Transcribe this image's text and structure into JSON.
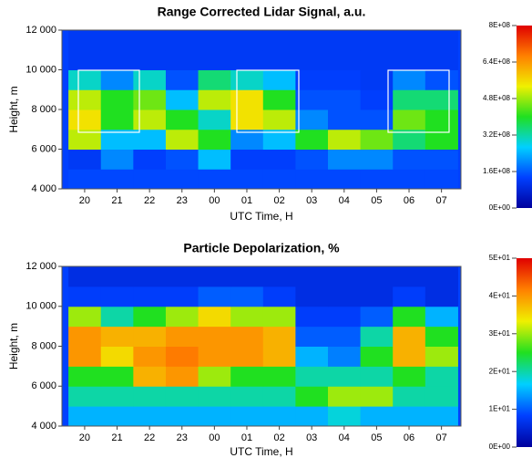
{
  "chart_data": [
    {
      "type": "heatmap",
      "title": "Range Corrected Lidar Signal, a.u.",
      "xlabel": "UTC Time, H",
      "ylabel": "Height, m",
      "x": [
        20,
        21,
        22,
        23,
        24,
        25,
        26,
        27,
        28,
        29,
        30,
        31
      ],
      "y": [
        4500,
        5500,
        6500,
        7500,
        8500,
        9500,
        10500,
        11500
      ],
      "z": [
        [
          140000000,
          140000000,
          140000000,
          140000000,
          140000000,
          140000000,
          140000000,
          140000000,
          140000000,
          140000000,
          140000000,
          140000000
        ],
        [
          120000000,
          200000000,
          130000000,
          150000000,
          250000000,
          130000000,
          130000000,
          150000000,
          200000000,
          200000000,
          150000000,
          150000000
        ],
        [
          500000000,
          250000000,
          250000000,
          500000000,
          400000000,
          200000000,
          250000000,
          400000000,
          500000000,
          450000000,
          350000000,
          400000000
        ],
        [
          550000000,
          400000000,
          500000000,
          400000000,
          300000000,
          550000000,
          500000000,
          200000000,
          150000000,
          150000000,
          450000000,
          400000000
        ],
        [
          500000000,
          400000000,
          450000000,
          250000000,
          500000000,
          550000000,
          400000000,
          150000000,
          150000000,
          130000000,
          350000000,
          350000000
        ],
        [
          300000000,
          200000000,
          300000000,
          150000000,
          350000000,
          300000000,
          250000000,
          130000000,
          130000000,
          120000000,
          200000000,
          150000000
        ],
        [
          120000000,
          120000000,
          120000000,
          120000000,
          120000000,
          120000000,
          120000000,
          120000000,
          120000000,
          120000000,
          120000000,
          120000000
        ],
        [
          120000000,
          120000000,
          120000000,
          120000000,
          120000000,
          120000000,
          120000000,
          120000000,
          120000000,
          120000000,
          120000000,
          120000000
        ]
      ],
      "xlim": [
        19.3,
        31.6
      ],
      "xticks": [
        20,
        21,
        22,
        23,
        {
          "value": 24,
          "label": "00"
        },
        {
          "value": 25,
          "label": "01"
        },
        {
          "value": 26,
          "label": "02"
        },
        {
          "value": 27,
          "label": "03"
        },
        {
          "value": 28,
          "label": "04"
        },
        {
          "value": 29,
          "label": "05"
        },
        {
          "value": 30,
          "label": "06"
        },
        {
          "value": 31,
          "label": "07"
        }
      ],
      "ylim": [
        4000,
        12000
      ],
      "yticks": [
        {
          "value": 4000,
          "label": "4 000"
        },
        {
          "value": 6000,
          "label": "6 000"
        },
        {
          "value": 8000,
          "label": "8 000"
        },
        {
          "value": 10000,
          "label": "10 000"
        },
        {
          "value": 12000,
          "label": "12 000"
        }
      ],
      "zlim": [
        0,
        800000000
      ],
      "zticks": [
        {
          "value": 0,
          "label": "0E+00"
        },
        {
          "value": 160000000,
          "label": "1.6E+08"
        },
        {
          "value": 320000000,
          "label": "3.2E+08"
        },
        {
          "value": 480000000,
          "label": "4.8E+08"
        },
        {
          "value": 640000000,
          "label": "6.4E+08"
        },
        {
          "value": 800000000,
          "label": "8E+08"
        }
      ],
      "colorscale": [
        "#00009c",
        "#0040ff",
        "#00d0ff",
        "#20e020",
        "#f0f000",
        "#ff8000",
        "#e00000"
      ]
    },
    {
      "type": "heatmap",
      "title": "Particle Depolarization, %",
      "xlabel": "UTC Time, H",
      "ylabel": "Height, m",
      "x": [
        20,
        21,
        22,
        23,
        24,
        25,
        26,
        27,
        28,
        29,
        30,
        31
      ],
      "y": [
        4500,
        5500,
        6500,
        7500,
        8500,
        9500,
        10500,
        11500
      ],
      "z": [
        [
          15,
          15,
          15,
          15,
          15,
          15,
          15,
          15,
          18,
          15,
          15,
          15
        ],
        [
          20,
          20,
          20,
          20,
          20,
          20,
          20,
          25,
          30,
          30,
          20,
          20
        ],
        [
          25,
          25,
          38,
          40,
          30,
          25,
          25,
          20,
          20,
          20,
          25,
          20
        ],
        [
          40,
          35,
          40,
          42,
          40,
          40,
          38,
          15,
          12,
          25,
          38,
          30
        ],
        [
          40,
          38,
          38,
          40,
          40,
          40,
          38,
          10,
          10,
          20,
          38,
          25
        ],
        [
          30,
          20,
          25,
          30,
          35,
          30,
          30,
          8,
          8,
          10,
          25,
          15
        ],
        [
          8,
          8,
          8,
          8,
          10,
          10,
          8,
          6,
          6,
          6,
          8,
          6
        ],
        [
          6,
          6,
          6,
          6,
          6,
          6,
          6,
          6,
          6,
          6,
          6,
          6
        ]
      ],
      "xlim": [
        19.3,
        31.6
      ],
      "xticks": [
        20,
        21,
        22,
        23,
        {
          "value": 24,
          "label": "00"
        },
        {
          "value": 25,
          "label": "01"
        },
        {
          "value": 26,
          "label": "02"
        },
        {
          "value": 27,
          "label": "03"
        },
        {
          "value": 28,
          "label": "04"
        },
        {
          "value": 29,
          "label": "05"
        },
        {
          "value": 30,
          "label": "06"
        },
        {
          "value": 31,
          "label": "07"
        }
      ],
      "ylim": [
        4000,
        12000
      ],
      "yticks": [
        {
          "value": 4000,
          "label": "4 000"
        },
        {
          "value": 6000,
          "label": "6 000"
        },
        {
          "value": 8000,
          "label": "8 000"
        },
        {
          "value": 10000,
          "label": "10 000"
        },
        {
          "value": 12000,
          "label": "12 000"
        }
      ],
      "zlim": [
        0,
        50
      ],
      "zticks": [
        {
          "value": 0,
          "label": "0E+00"
        },
        {
          "value": 10,
          "label": "1E+01"
        },
        {
          "value": 20,
          "label": "2E+01"
        },
        {
          "value": 30,
          "label": "3E+01"
        },
        {
          "value": 40,
          "label": "4E+01"
        },
        {
          "value": 50,
          "label": "5E+01"
        }
      ],
      "colorscale": [
        "#00009c",
        "#0040ff",
        "#00d0ff",
        "#20e020",
        "#f0f000",
        "#ff8000",
        "#e00000"
      ]
    }
  ]
}
